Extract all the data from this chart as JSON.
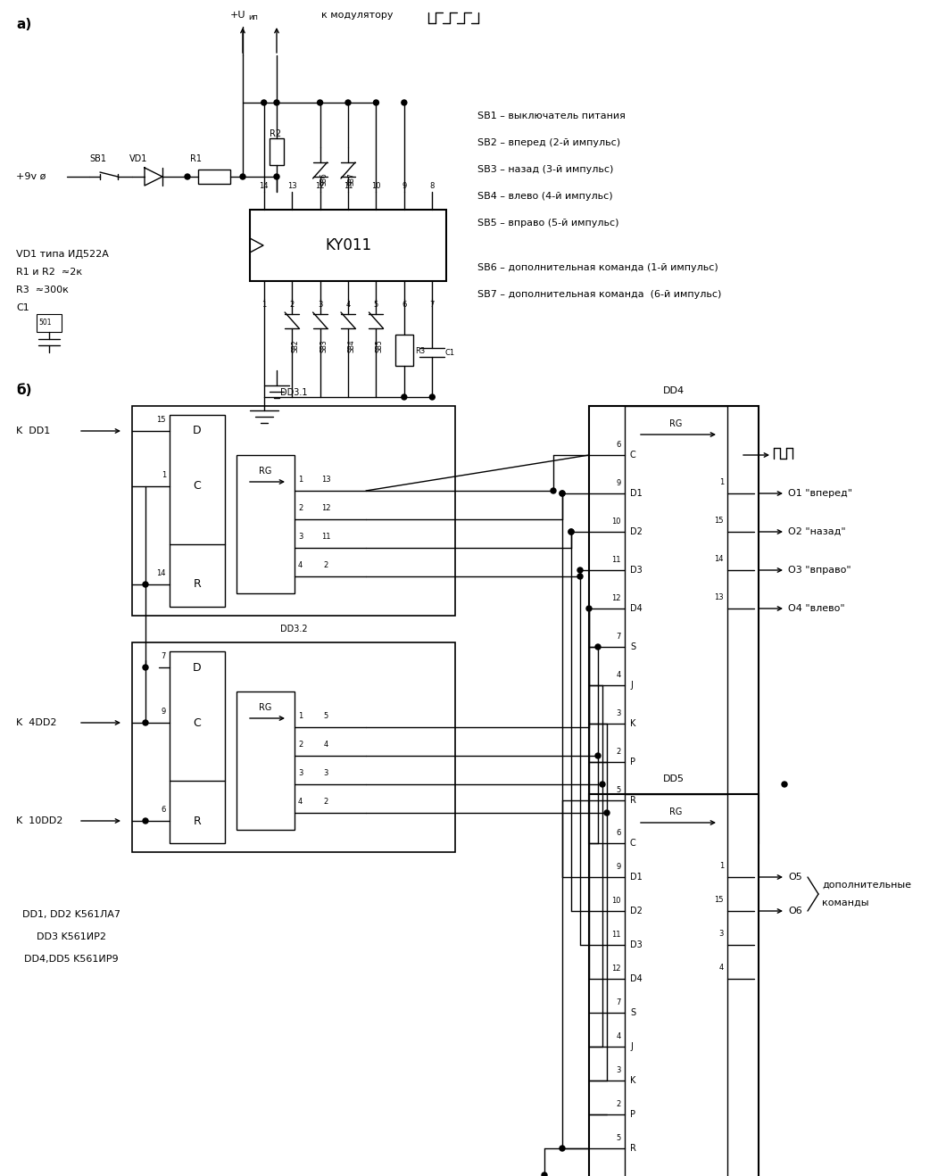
{
  "title_a": "а)",
  "title_b": "б)",
  "bg_color": "#ffffff",
  "line_color": "#000000",
  "labels_right": [
    "SB1 – выключатель питания",
    "SB2 – вперед (2-й импульс)",
    "SB3 – назад (3-й импульс)",
    "SB4 – влево (4-й импульс)",
    "SB5 – вправо (5-й импульс)"
  ],
  "labels_right2": [
    "SB6 – дополнительная команда (1-й импульс)",
    "SB7 – дополнительная команда  (6-й импульс)"
  ],
  "chip_label": "KY011",
  "vd1_text": "VD1 типа ИД522А",
  "r1r2_text": "R1 и R2  ≈2к",
  "r3_text": "R3  ≈300к",
  "c1_text": "C1",
  "c1_val": "501",
  "v9_text": "+9v ø",
  "modul_text": "к модулятору",
  "dd_labels": [
    "DD1, DD2 K561ЛА7",
    "DD3 K561ИР2",
    "DD4,DD5 K561ИР9"
  ],
  "o1_text": "O1 \"вперед\"",
  "o2_text": "O2 \"назад\"",
  "o3_text": "O3 \"вправо\"",
  "o4_text": "O4 \"влево\"",
  "o5_text": "O5",
  "o6_text": "O6",
  "dop_text": "дополнительные",
  "kom_text": "команды",
  "kdd1_text": "K  DD1",
  "k4dd2_text": "K  4DD2",
  "k10dd2_text": "K  10DD2",
  "dd31_text": "DD3.1",
  "dd32_text": "DD3.2",
  "dd4_text": "DD4",
  "dd5_text": "DD5"
}
